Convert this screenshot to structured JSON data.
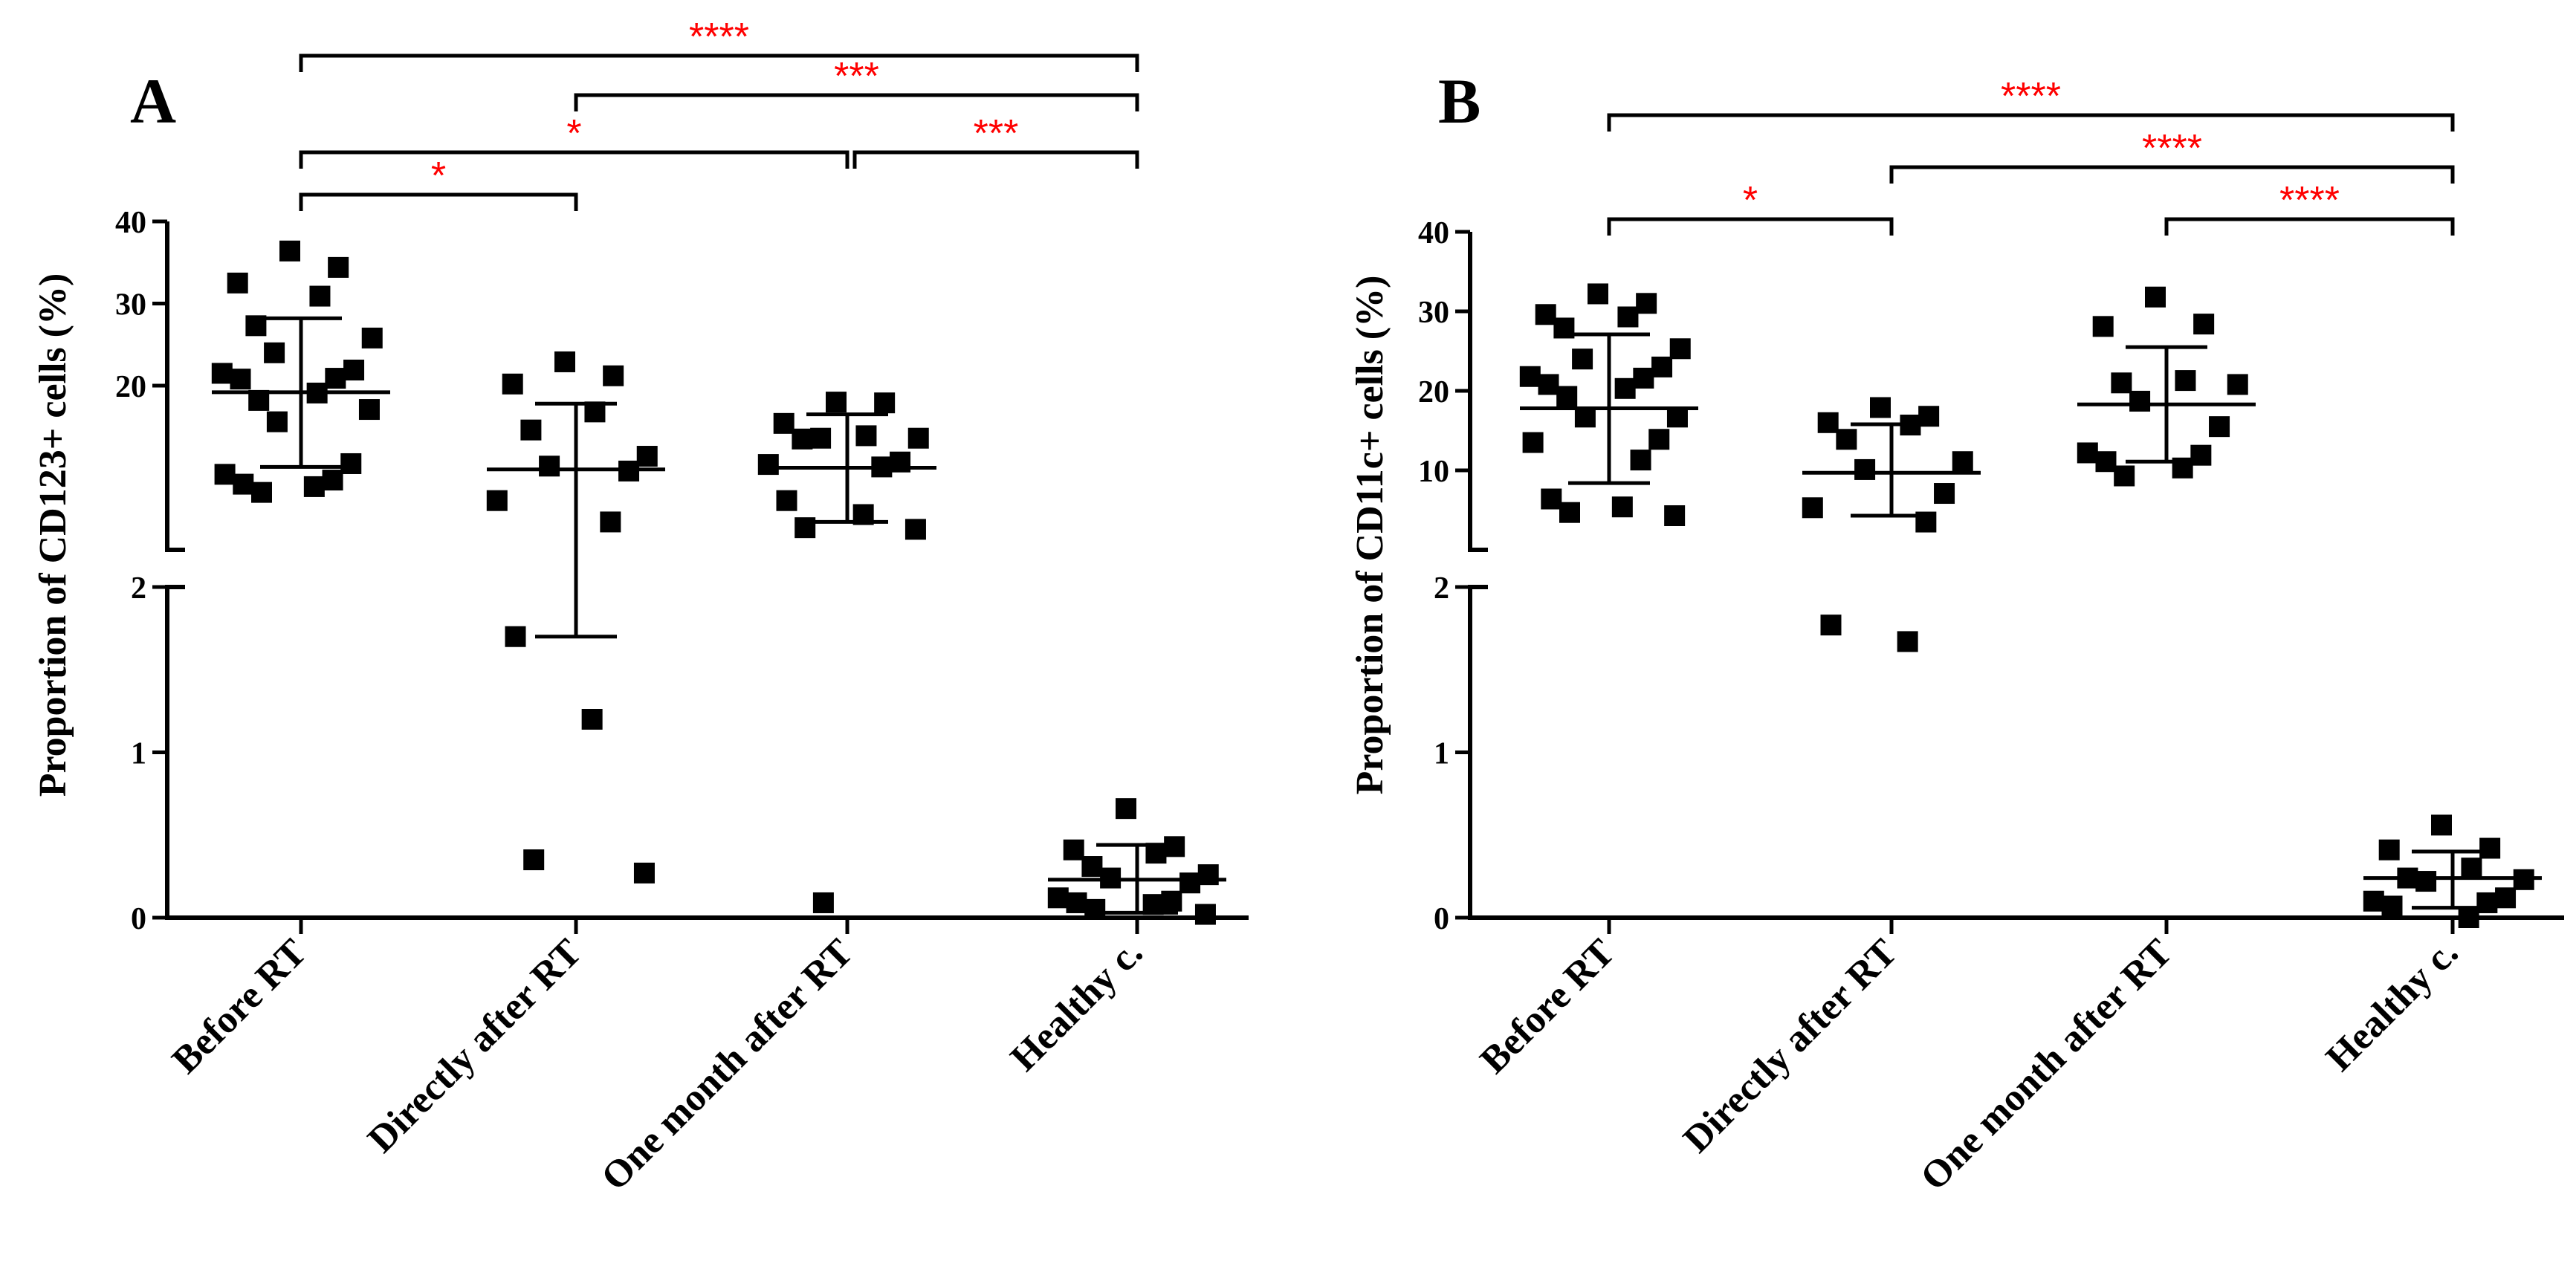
{
  "figure": {
    "colors": {
      "axis": "#000000",
      "marker": "#000000",
      "significance": "#ff0000",
      "background": "#ffffff"
    }
  },
  "chart_data": [
    {
      "type": "scatter",
      "panel_label": "A",
      "title": "",
      "xlabel": "",
      "ylabel": "Proportion of CD123+ cells (%)",
      "categories": [
        "Before RT",
        "Directly after RT",
        "One month after RT",
        "Healthy c."
      ],
      "y_axis_broken": true,
      "lower_segment": {
        "ylim": [
          0,
          2
        ],
        "ticks": [
          0,
          1,
          2
        ]
      },
      "upper_segment": {
        "ylim": [
          0,
          40
        ],
        "ticks": [
          20,
          30,
          40
        ]
      },
      "groups": [
        {
          "name": "Before RT",
          "mean": 19.2,
          "sd_low": 10.1,
          "sd_high": 28.2,
          "points": [
            36.4,
            34.4,
            32.5,
            30.9,
            27.3,
            25.8,
            24.0,
            21.9,
            21.5,
            20.9,
            20.8,
            19.1,
            18.2,
            17.1,
            15.6,
            10.5,
            9.2,
            8.5,
            8.0,
            7.7,
            7.0
          ]
        },
        {
          "name": "Directly after RT",
          "mean": 9.8,
          "sd_low": 1.7,
          "sd_high": 17.8,
          "points": [
            22.9,
            21.2,
            20.2,
            16.8,
            14.6,
            11.4,
            10.2,
            9.6,
            6.0,
            3.4,
            1.7,
            1.2,
            0.35,
            0.27
          ]
        },
        {
          "name": "One month after RT",
          "mean": 10.0,
          "sd_low": 3.4,
          "sd_high": 16.5,
          "points": [
            18.0,
            17.9,
            15.4,
            13.9,
            13.5,
            13.6,
            13.6,
            10.7,
            10.4,
            10.1,
            6.0,
            4.3,
            2.7,
            2.5,
            0.09
          ]
        },
        {
          "name": "Healthy c.",
          "mean": 0.23,
          "sd_low": 0.03,
          "sd_high": 0.44,
          "points": [
            0.66,
            0.43,
            0.41,
            0.39,
            0.31,
            0.26,
            0.24,
            0.21,
            0.12,
            0.1,
            0.09,
            0.08,
            0.05,
            0.02
          ]
        }
      ],
      "significance": [
        {
          "from": "Before RT",
          "to": "Healthy c.",
          "label": "****"
        },
        {
          "from": "Directly after RT",
          "to": "Healthy c.",
          "label": "***"
        },
        {
          "from": "Before RT",
          "to": "One month after RT",
          "label": "*"
        },
        {
          "from": "One month after RT",
          "to": "Healthy c.",
          "label": "***"
        },
        {
          "from": "Before RT",
          "to": "Directly after RT",
          "label": "*"
        }
      ]
    },
    {
      "type": "scatter",
      "panel_label": "B",
      "title": "",
      "xlabel": "",
      "ylabel": "Proportion of CD11c+ cells (%)",
      "categories": [
        "Before RT",
        "Directly after RT",
        "One month after RT",
        "Healthy c."
      ],
      "y_axis_broken": true,
      "lower_segment": {
        "ylim": [
          0,
          2
        ],
        "ticks": [
          0,
          1,
          2
        ]
      },
      "upper_segment": {
        "ylim": [
          0,
          40
        ],
        "ticks": [
          10,
          20,
          30,
          40
        ]
      },
      "groups": [
        {
          "name": "Before RT",
          "mean": 17.8,
          "sd_low": 8.4,
          "sd_high": 27.1,
          "points": [
            32.2,
            31.0,
            29.6,
            29.3,
            27.9,
            25.3,
            24.0,
            23.0,
            21.8,
            21.6,
            20.8,
            20.3,
            19.3,
            16.7,
            16.7,
            13.9,
            13.5,
            11.3,
            6.4,
            5.4,
            4.7,
            4.3
          ]
        },
        {
          "name": "Directly after RT",
          "mean": 9.7,
          "sd_low": 4.3,
          "sd_high": 15.8,
          "points": [
            17.9,
            16.8,
            16.0,
            15.7,
            13.9,
            11.1,
            10.1,
            7.1,
            5.3,
            3.5,
            1.77,
            1.67
          ]
        },
        {
          "name": "One month after RT",
          "mean": 18.3,
          "sd_low": 11.1,
          "sd_high": 25.5,
          "points": [
            31.8,
            28.4,
            28.1,
            21.3,
            21.0,
            20.8,
            18.7,
            15.5,
            12.2,
            11.9,
            11.1,
            10.3,
            9.3
          ]
        },
        {
          "name": "Healthy c.",
          "mean": 0.24,
          "sd_low": 0.06,
          "sd_high": 0.4,
          "points": [
            0.56,
            0.42,
            0.41,
            0.3,
            0.24,
            0.23,
            0.22,
            0.12,
            0.1,
            0.09,
            0.07,
            0.0
          ]
        }
      ],
      "significance": [
        {
          "from": "Before RT",
          "to": "Healthy c.",
          "label": "****"
        },
        {
          "from": "Directly after RT",
          "to": "Healthy c.",
          "label": "****"
        },
        {
          "from": "Before RT",
          "to": "Directly after RT",
          "label": "*"
        },
        {
          "from": "One month after RT",
          "to": "Healthy c.",
          "label": "****"
        }
      ]
    }
  ]
}
